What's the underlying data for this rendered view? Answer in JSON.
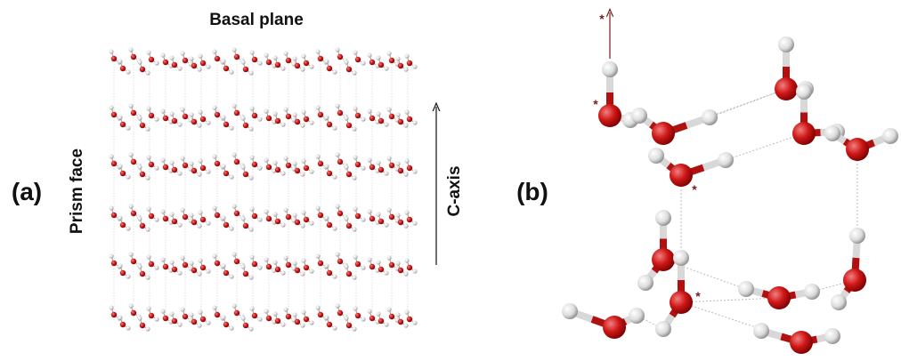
{
  "panel_a": {
    "label": "(a)",
    "top_label": "Basal plane",
    "side_label": "Prism face",
    "axis_label": "C-axis"
  },
  "panel_b": {
    "label": "(b)",
    "markers": [
      "*",
      "*",
      "*",
      "*"
    ]
  }
}
